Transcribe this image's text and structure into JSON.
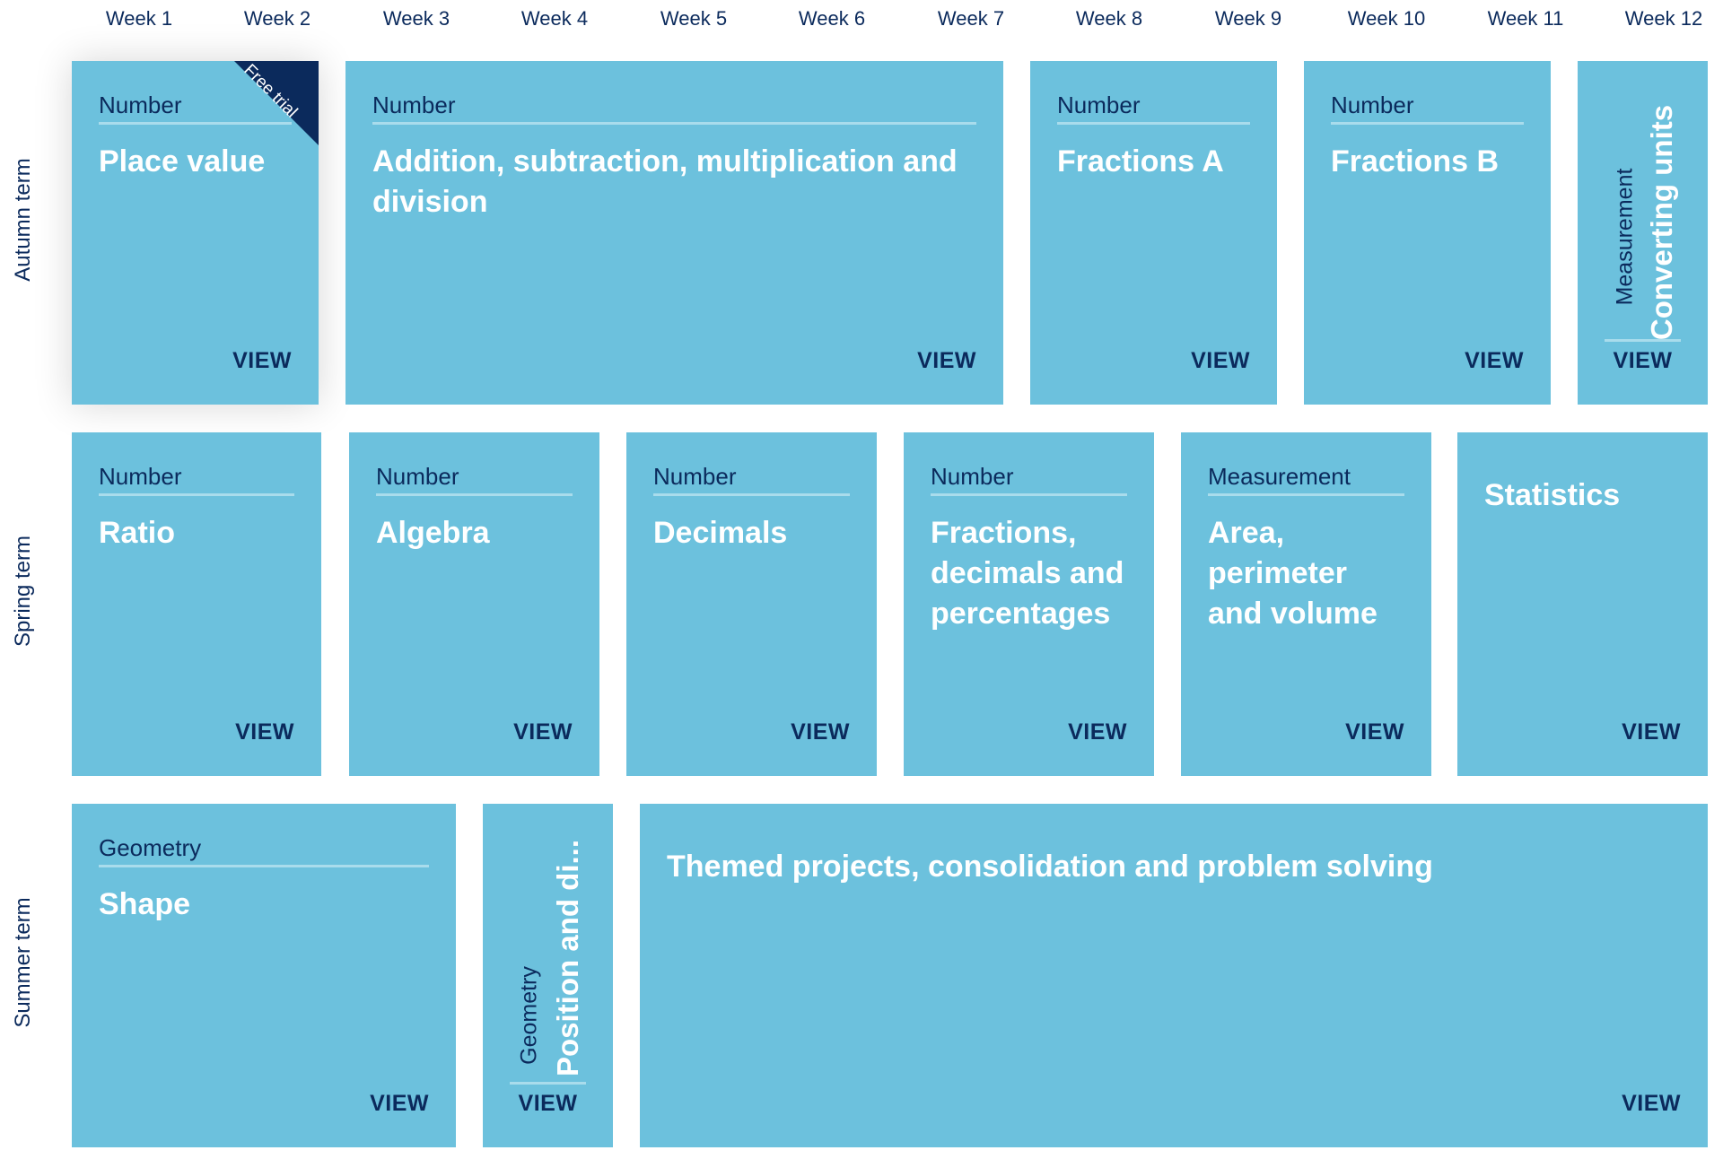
{
  "weeks": [
    "Week 1",
    "Week 2",
    "Week 3",
    "Week 4",
    "Week 5",
    "Week 6",
    "Week 7",
    "Week 8",
    "Week 9",
    "Week 10",
    "Week 11",
    "Week 12"
  ],
  "terms": {
    "autumn": "Autumn term",
    "spring": "Spring term",
    "summer": "Summer term"
  },
  "view_label": "VIEW",
  "autumn": {
    "place_value": {
      "category": "Number",
      "title": "Place value",
      "badge": "Free trial"
    },
    "addition": {
      "category": "Number",
      "title": "Addition, subtraction, multiplication and division"
    },
    "fractions_a": {
      "category": "Number",
      "title": "Fractions A"
    },
    "fractions_b": {
      "category": "Number",
      "title": "Fractions B"
    },
    "converting_units": {
      "category": "Measurement",
      "title": "Converting units"
    }
  },
  "spring": {
    "ratio": {
      "category": "Number",
      "title": "Ratio"
    },
    "algebra": {
      "category": "Number",
      "title": "Algebra"
    },
    "decimals": {
      "category": "Number",
      "title": "Decimals"
    },
    "fdp": {
      "category": "Number",
      "title": "Fractions, decimals and percentages"
    },
    "area": {
      "category": "Measurement",
      "title": "Area, perimeter and volume"
    },
    "statistics": {
      "title": "Statistics"
    }
  },
  "summer": {
    "shape": {
      "category": "Geometry",
      "title": "Shape"
    },
    "position": {
      "category": "Geometry",
      "title": "Position and di..."
    },
    "themed": {
      "title": "Themed projects, consolidation and problem solving"
    }
  },
  "colors": {
    "card": "#6cc1dd",
    "navy": "#0b2a5c",
    "rule": "#a9dcec",
    "ribbon": "#0b2a5c"
  }
}
